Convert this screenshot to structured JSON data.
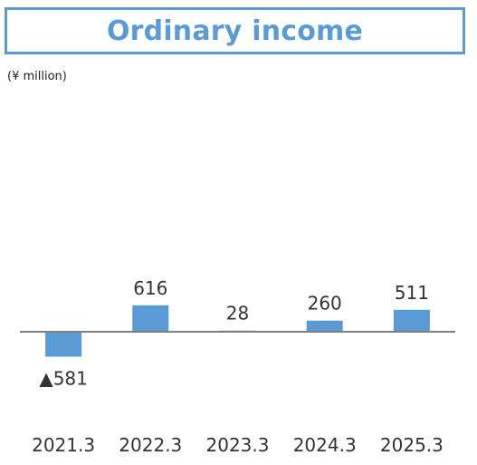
{
  "title": "Ordinary income",
  "unit_label": "(¥ million)",
  "colors": {
    "accent": "#5b9bd5",
    "bar": "#5b9bd5",
    "axis": "#808080",
    "text": "#333333"
  },
  "chart_data": {
    "type": "bar",
    "title": "Ordinary income",
    "ylabel": "(¥ million)",
    "categories": [
      "2021.3",
      "2022.3",
      "2023.3",
      "2024.3",
      "2025.3"
    ],
    "values": [
      -581,
      616,
      28,
      260,
      511
    ],
    "data_labels": [
      "▲581",
      "616",
      "28",
      "260",
      "511"
    ],
    "grid": false,
    "legend": "none"
  }
}
